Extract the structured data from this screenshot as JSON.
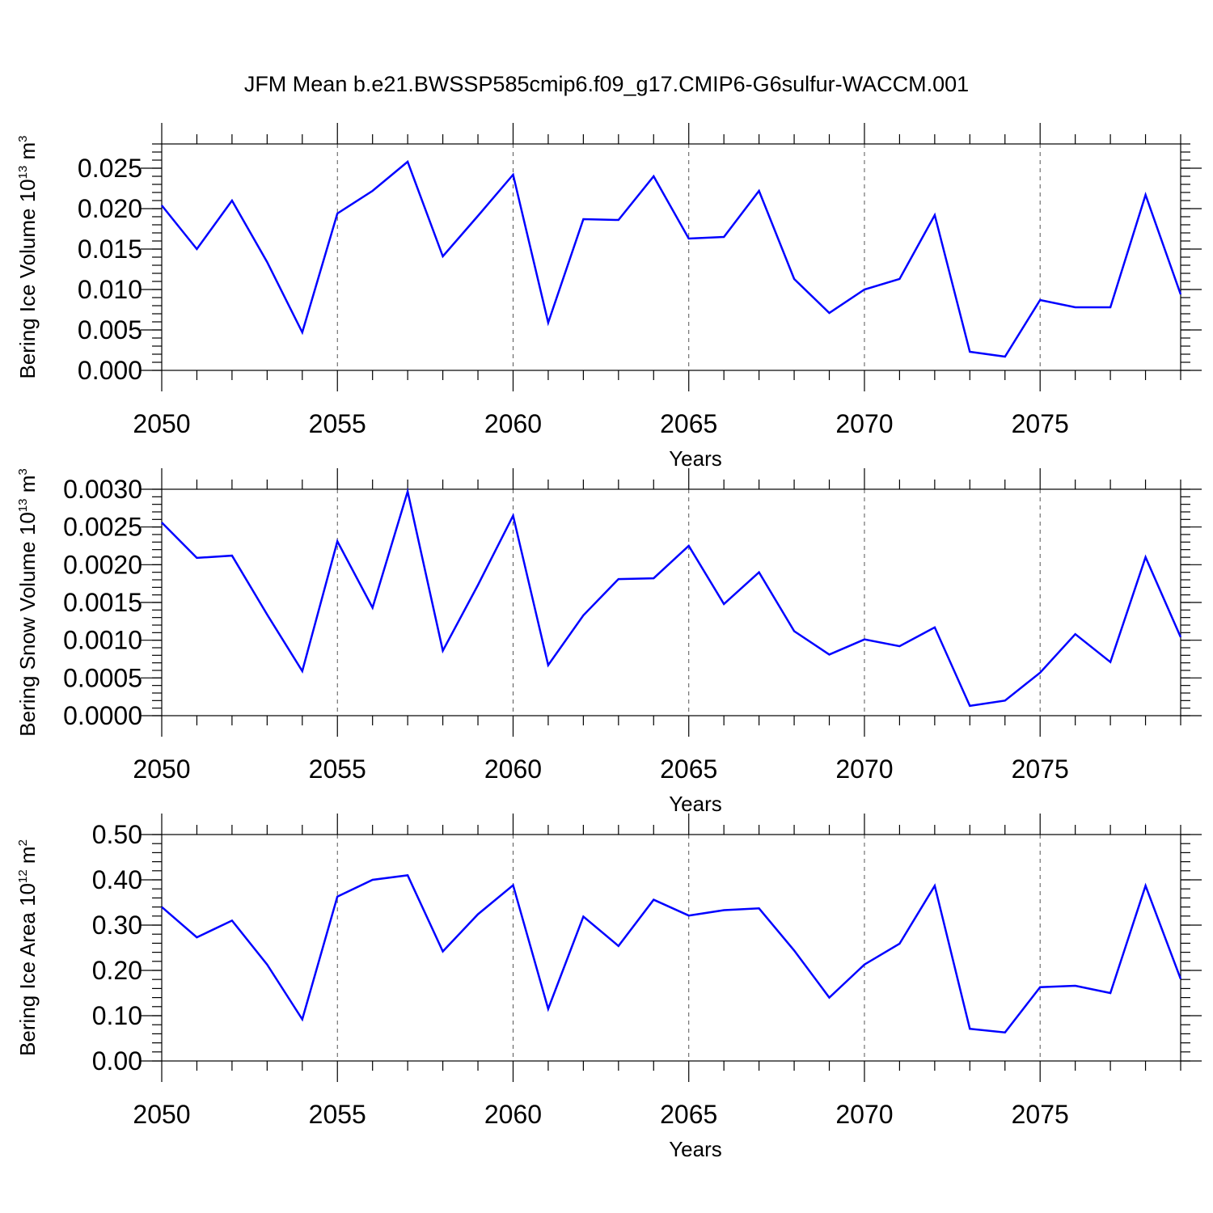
{
  "figure": {
    "title": "JFM Mean b.e21.BWSSP585cmip6.f09_g17.CMIP6-G6sulfur-WACCM.001",
    "line_color": "#0000ff"
  },
  "chart_data": [
    {
      "type": "line",
      "xlabel": "Years",
      "ylabel": "Bering Ice Volume 10",
      "ylabel_exp": "13",
      "ylabel_unit": " m",
      "ylabel_unit_exp": "3",
      "xlim": [
        2050,
        2079
      ],
      "ylim": [
        0.0,
        0.028
      ],
      "xticks": [
        2050,
        2055,
        2060,
        2065,
        2070,
        2075
      ],
      "xtick_labels": [
        "2050",
        "2055",
        "2060",
        "2065",
        "2070",
        "2075"
      ],
      "yticks": [
        0.0,
        0.005,
        0.01,
        0.015,
        0.02,
        0.025
      ],
      "ytick_labels": [
        "0.000",
        "0.005",
        "0.010",
        "0.015",
        "0.020",
        "0.025"
      ],
      "yminor_step": 0.001,
      "xgrid": true,
      "x": [
        2050,
        2051,
        2052,
        2053,
        2054,
        2055,
        2056,
        2057,
        2058,
        2059,
        2060,
        2061,
        2062,
        2063,
        2064,
        2065,
        2066,
        2067,
        2068,
        2069,
        2070,
        2071,
        2072,
        2073,
        2074,
        2075,
        2076,
        2077,
        2078,
        2079
      ],
      "y": [
        0.0204,
        0.015,
        0.021,
        0.0134,
        0.0047,
        0.0194,
        0.0222,
        0.0258,
        0.0141,
        0.0191,
        0.0242,
        0.0059,
        0.0187,
        0.0186,
        0.024,
        0.0163,
        0.0165,
        0.0222,
        0.0113,
        0.0071,
        0.01,
        0.0113,
        0.0192,
        0.0023,
        0.0017,
        0.0087,
        0.0078,
        0.0078,
        0.0217,
        0.0094
      ]
    },
    {
      "type": "line",
      "xlabel": "Years",
      "ylabel": "Bering Snow Volume 10",
      "ylabel_exp": "13",
      "ylabel_unit": " m",
      "ylabel_unit_exp": "3",
      "xlim": [
        2050,
        2079
      ],
      "ylim": [
        0.0,
        0.003
      ],
      "xticks": [
        2050,
        2055,
        2060,
        2065,
        2070,
        2075
      ],
      "xtick_labels": [
        "2050",
        "2055",
        "2060",
        "2065",
        "2070",
        "2075"
      ],
      "yticks": [
        0.0,
        0.0005,
        0.001,
        0.0015,
        0.002,
        0.0025,
        0.003
      ],
      "ytick_labels": [
        "0.0000",
        "0.0005",
        "0.0010",
        "0.0015",
        "0.0020",
        "0.0025",
        "0.0030"
      ],
      "yminor_step": 0.0001,
      "xgrid": true,
      "x": [
        2050,
        2051,
        2052,
        2053,
        2054,
        2055,
        2056,
        2057,
        2058,
        2059,
        2060,
        2061,
        2062,
        2063,
        2064,
        2065,
        2066,
        2067,
        2068,
        2069,
        2070,
        2071,
        2072,
        2073,
        2074,
        2075,
        2076,
        2077,
        2078,
        2079
      ],
      "y": [
        0.00256,
        0.00209,
        0.00212,
        0.00134,
        0.00059,
        0.00231,
        0.00143,
        0.00297,
        0.00086,
        0.00173,
        0.00265,
        0.00067,
        0.00133,
        0.00181,
        0.00182,
        0.00225,
        0.00148,
        0.0019,
        0.00112,
        0.00081,
        0.00101,
        0.00092,
        0.00117,
        0.00013,
        0.0002,
        0.00057,
        0.00108,
        0.00071,
        0.0021,
        0.00104
      ]
    },
    {
      "type": "line",
      "xlabel": "Years",
      "ylabel": "Bering Ice Area 10",
      "ylabel_exp": "12",
      "ylabel_unit": " m",
      "ylabel_unit_exp": "2",
      "xlim": [
        2050,
        2079
      ],
      "ylim": [
        0.0,
        0.5
      ],
      "xticks": [
        2050,
        2055,
        2060,
        2065,
        2070,
        2075
      ],
      "xtick_labels": [
        "2050",
        "2055",
        "2060",
        "2065",
        "2070",
        "2075"
      ],
      "yticks": [
        0.0,
        0.1,
        0.2,
        0.3,
        0.4,
        0.5
      ],
      "ytick_labels": [
        "0.00",
        "0.10",
        "0.20",
        "0.30",
        "0.40",
        "0.50"
      ],
      "yminor_step": 0.02,
      "xgrid": true,
      "x": [
        2050,
        2051,
        2052,
        2053,
        2054,
        2055,
        2056,
        2057,
        2058,
        2059,
        2060,
        2061,
        2062,
        2063,
        2064,
        2065,
        2066,
        2067,
        2068,
        2069,
        2070,
        2071,
        2072,
        2073,
        2074,
        2075,
        2076,
        2077,
        2078,
        2079
      ],
      "y": [
        0.34,
        0.273,
        0.31,
        0.213,
        0.092,
        0.363,
        0.4,
        0.41,
        0.242,
        0.324,
        0.388,
        0.115,
        0.319,
        0.254,
        0.356,
        0.321,
        0.333,
        0.337,
        0.244,
        0.14,
        0.213,
        0.259,
        0.387,
        0.071,
        0.063,
        0.163,
        0.166,
        0.15,
        0.387,
        0.181
      ]
    }
  ]
}
